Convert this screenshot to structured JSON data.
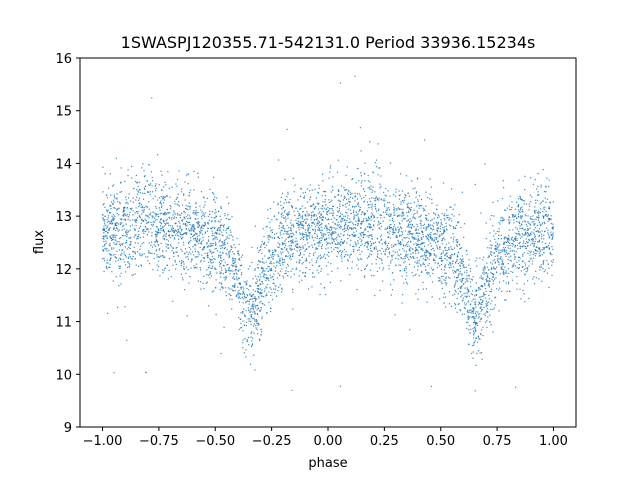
{
  "chart_data": {
    "type": "scatter",
    "title": "1SWASPJ120355.71-542131.0 Period 33936.15234s",
    "xlabel": "phase",
    "ylabel": "flux",
    "xlim": [
      -1.1,
      1.1
    ],
    "ylim": [
      9,
      16
    ],
    "xticks": [
      -1.0,
      -0.75,
      -0.5,
      -0.25,
      0.0,
      0.25,
      0.5,
      0.75,
      1.0
    ],
    "xtick_labels": [
      "−1.00",
      "−0.75",
      "−0.50",
      "−0.25",
      "0.00",
      "0.25",
      "0.50",
      "0.75",
      "1.00"
    ],
    "yticks": [
      9,
      10,
      11,
      12,
      13,
      14,
      15,
      16
    ],
    "ytick_labels": [
      "9",
      "10",
      "11",
      "12",
      "13",
      "14",
      "15",
      "16"
    ],
    "grid": false,
    "point_color": "#1f77b4",
    "light_curve_profile": {
      "phase": [
        -1.0,
        -0.9,
        -0.8,
        -0.7,
        -0.6,
        -0.5,
        -0.45,
        -0.4,
        -0.35,
        -0.3,
        -0.25,
        -0.2,
        -0.1,
        0.0,
        0.1,
        0.2,
        0.3,
        0.4,
        0.5,
        0.55,
        0.6,
        0.65,
        0.7,
        0.75,
        0.8,
        0.9,
        1.0
      ],
      "flux": [
        12.7,
        12.8,
        12.9,
        12.8,
        12.7,
        12.5,
        12.3,
        11.8,
        11.0,
        11.6,
        12.2,
        12.5,
        12.7,
        12.8,
        12.85,
        12.8,
        12.75,
        12.6,
        12.5,
        12.3,
        11.8,
        11.0,
        11.6,
        12.2,
        12.5,
        12.6,
        12.7
      ]
    },
    "scatter_spread": 0.45,
    "outlier_range": [
      9.3,
      15.7
    ]
  }
}
